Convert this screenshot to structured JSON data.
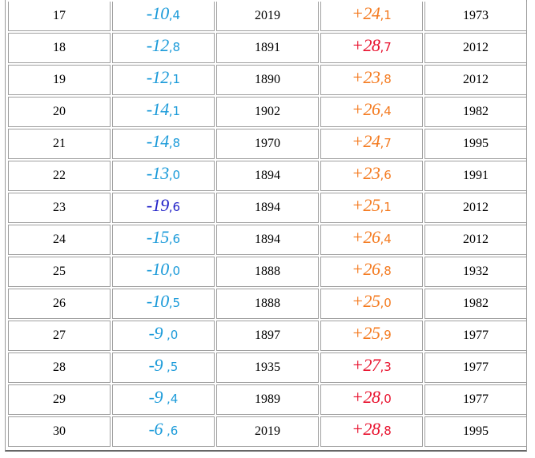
{
  "colors": {
    "cold": "#1a9ad9",
    "cold_record": "#2323c8",
    "warm": "#f47a1f",
    "warm_record": "#e8112d",
    "text": "#000000"
  },
  "rows": [
    {
      "day": "17",
      "min_int": "-10",
      "min_frac": ",4",
      "min_year": "2019",
      "max_int": "+24",
      "max_frac": ",1",
      "max_year": "1973",
      "min_color": "cold",
      "max_color": "warm"
    },
    {
      "day": "18",
      "min_int": "-12",
      "min_frac": ",8",
      "min_year": "1891",
      "max_int": "+28",
      "max_frac": ",7",
      "max_year": "2012",
      "min_color": "cold",
      "max_color": "warm_record"
    },
    {
      "day": "19",
      "min_int": "-12",
      "min_frac": ",1",
      "min_year": "1890",
      "max_int": "+23",
      "max_frac": ",8",
      "max_year": "2012",
      "min_color": "cold",
      "max_color": "warm"
    },
    {
      "day": "20",
      "min_int": "-14",
      "min_frac": ",1",
      "min_year": "1902",
      "max_int": "+26",
      "max_frac": ",4",
      "max_year": "1982",
      "min_color": "cold",
      "max_color": "warm"
    },
    {
      "day": "21",
      "min_int": "-14",
      "min_frac": ",8",
      "min_year": "1970",
      "max_int": "+24",
      "max_frac": ",7",
      "max_year": "1995",
      "min_color": "cold",
      "max_color": "warm"
    },
    {
      "day": "22",
      "min_int": "-13",
      "min_frac": ",0",
      "min_year": "1894",
      "max_int": "+23",
      "max_frac": ",6",
      "max_year": "1991",
      "min_color": "cold",
      "max_color": "warm"
    },
    {
      "day": "23",
      "min_int": "-19",
      "min_frac": ",6",
      "min_year": "1894",
      "max_int": "+25",
      "max_frac": ",1",
      "max_year": "2012",
      "min_color": "cold_record",
      "max_color": "warm"
    },
    {
      "day": "24",
      "min_int": "-15",
      "min_frac": ",6",
      "min_year": "1894",
      "max_int": "+26",
      "max_frac": ",4",
      "max_year": "2012",
      "min_color": "cold",
      "max_color": "warm"
    },
    {
      "day": "25",
      "min_int": "-10",
      "min_frac": ",0",
      "min_year": "1888",
      "max_int": "+26",
      "max_frac": ",8",
      "max_year": "1932",
      "min_color": "cold",
      "max_color": "warm"
    },
    {
      "day": "26",
      "min_int": "-10",
      "min_frac": ",5",
      "min_year": "1888",
      "max_int": "+25",
      "max_frac": ",0",
      "max_year": "1982",
      "min_color": "cold",
      "max_color": "warm"
    },
    {
      "day": "27",
      "min_int": "-9 ",
      "min_frac": ",0",
      "min_year": "1897",
      "max_int": "+25",
      "max_frac": ",9",
      "max_year": "1977",
      "min_color": "cold",
      "max_color": "warm"
    },
    {
      "day": "28",
      "min_int": "-9 ",
      "min_frac": ",5",
      "min_year": "1935",
      "max_int": "+27",
      "max_frac": ",3",
      "max_year": "1977",
      "min_color": "cold",
      "max_color": "warm_record"
    },
    {
      "day": "29",
      "min_int": "-9 ",
      "min_frac": ",4",
      "min_year": "1989",
      "max_int": "+28",
      "max_frac": ",0",
      "max_year": "1977",
      "min_color": "cold",
      "max_color": "warm_record"
    },
    {
      "day": "30",
      "min_int": "-6 ",
      "min_frac": ",6",
      "min_year": "2019",
      "max_int": "+28",
      "max_frac": ",8",
      "max_year": "1995",
      "min_color": "cold",
      "max_color": "warm_record"
    }
  ]
}
